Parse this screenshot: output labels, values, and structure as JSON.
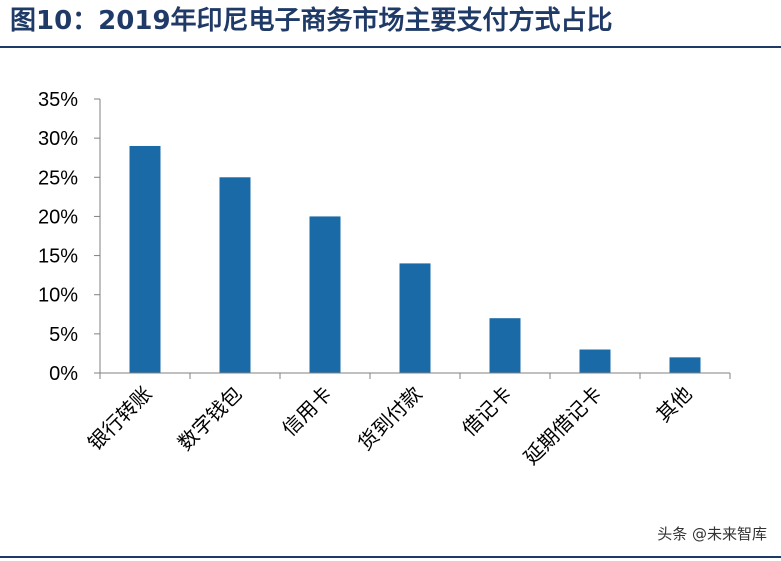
{
  "figure": {
    "title": "图10：2019年印尼电子商务市场主要支付方式占比",
    "watermark": "头条 @未来智库"
  },
  "colors": {
    "bar": "#1a6aa8",
    "title": "#1f3a66",
    "axis": "#808080"
  },
  "chart_data": {
    "type": "bar",
    "title": "",
    "xlabel": "",
    "ylabel": "",
    "categories": [
      "银行转账",
      "数字钱包",
      "信用卡",
      "货到付款",
      "借记卡",
      "延期借记卡",
      "其他"
    ],
    "values": [
      29,
      25,
      20,
      14,
      7,
      3,
      2
    ],
    "unit": "%",
    "ylim": [
      0,
      35
    ],
    "yticks": [
      0,
      5,
      10,
      15,
      20,
      25,
      30,
      35
    ],
    "ytick_labels": [
      "0%",
      "5%",
      "10%",
      "15%",
      "20%",
      "25%",
      "30%",
      "35%"
    ],
    "grid": false,
    "legend": "none"
  }
}
